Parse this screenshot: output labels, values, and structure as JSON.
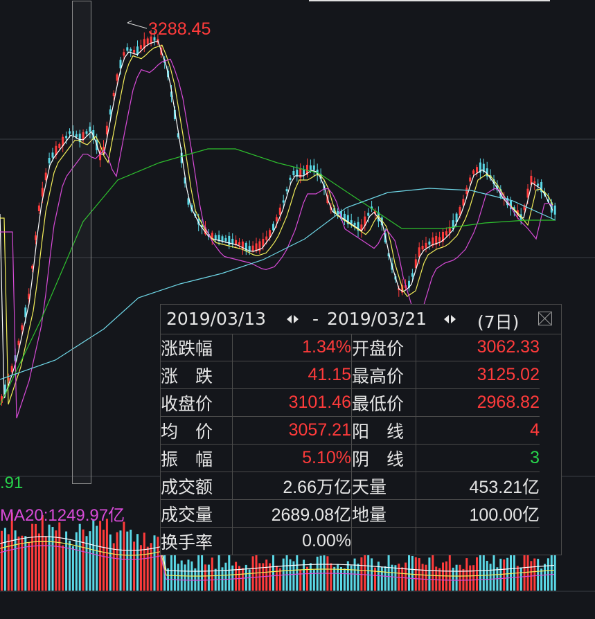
{
  "chart": {
    "high_label": "3288.45",
    "ma_left_label": ".91",
    "ma20_label": "MA20:1249.97亿",
    "colors": {
      "background": "#14161b",
      "up": "#ff3b3b",
      "down": "#5ad8e6",
      "ma5": "#ffffff",
      "ma10": "#f5f05a",
      "ma20": "#d84bd8",
      "ma60": "#2ec22e",
      "ma120": "#6fd8e8"
    }
  },
  "popup": {
    "start_date": "2019/03/13",
    "dash": "-",
    "end_date": "2019/03/21",
    "days": "(7日)",
    "rows": [
      {
        "label": "涨跌幅",
        "value": "1.34%",
        "color": "red",
        "label2": "开盘价",
        "value2": "3062.33",
        "color2": "red"
      },
      {
        "label": "涨　跌",
        "value": "41.15",
        "color": "red",
        "label2": "最高价",
        "value2": "3125.02",
        "color2": "red"
      },
      {
        "label": "收盘价",
        "value": "3101.46",
        "color": "red",
        "label2": "最低价",
        "value2": "2968.82",
        "color2": "red"
      },
      {
        "label": "均　价",
        "value": "3057.21",
        "color": "red",
        "label2": "阳　线",
        "value2": "4",
        "color2": "red"
      },
      {
        "label": "振　幅",
        "value": "5.10%",
        "color": "red",
        "label2": "阴　线",
        "value2": "3",
        "color2": "green"
      },
      {
        "label": "成交额",
        "value": "2.66万亿",
        "color": "white",
        "label2": "天量",
        "value2": "453.21亿",
        "color2": "white"
      },
      {
        "label": "成交量",
        "value": "2689.08亿",
        "color": "white",
        "label2": "地量",
        "value2": "100.00亿",
        "color2": "white"
      },
      {
        "label": "换手率",
        "value": "0.00%",
        "color": "white",
        "label2": "",
        "value2": "",
        "color2": "white"
      }
    ]
  }
}
